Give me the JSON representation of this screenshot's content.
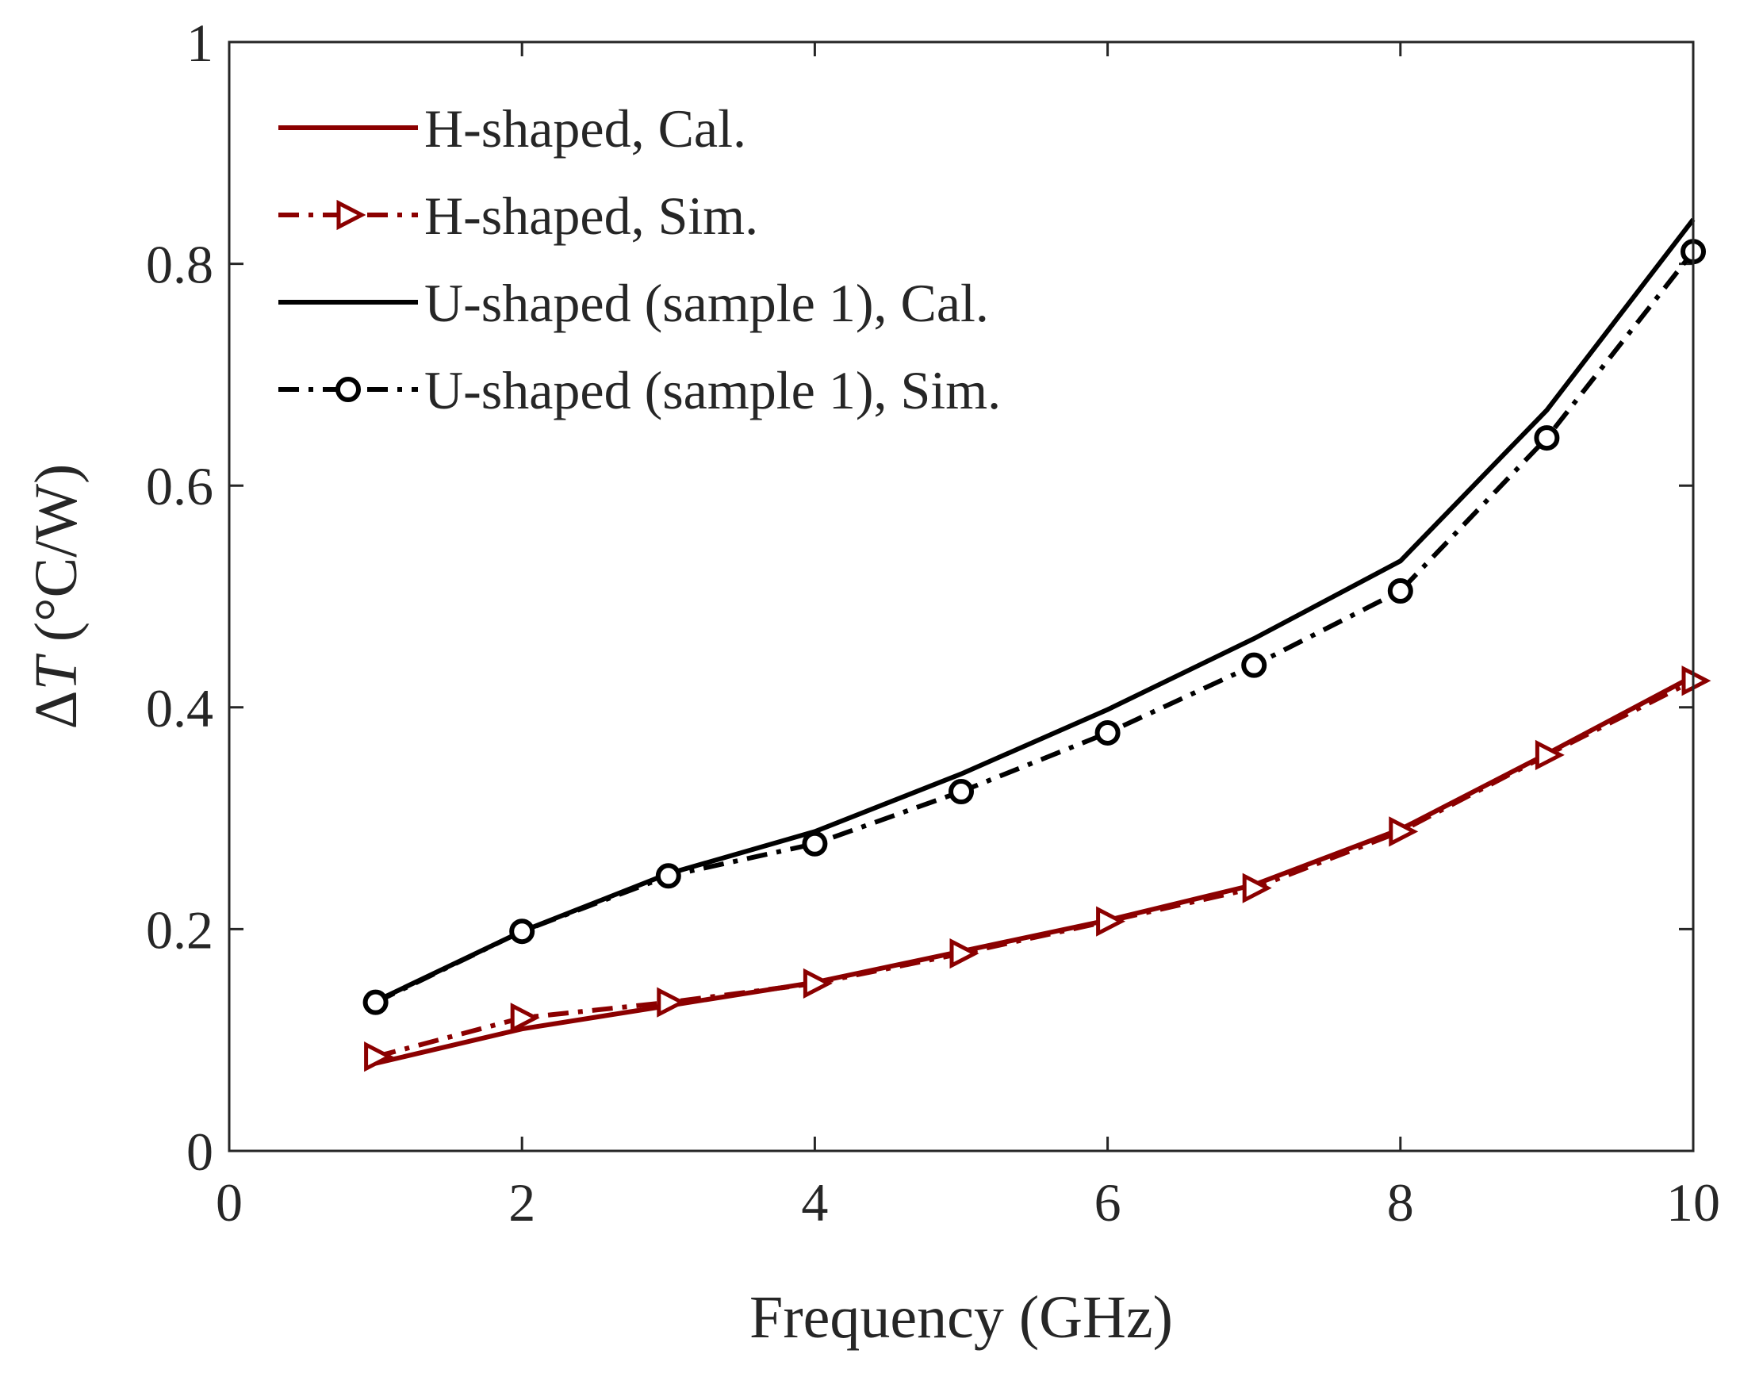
{
  "chart_data": {
    "type": "line",
    "title": "",
    "xlabel": "Frequency (GHz)",
    "ylabel": {
      "delta": "Δ",
      "symbol": "T",
      "unit": " (°C/W)"
    },
    "xlim": [
      0,
      10
    ],
    "ylim": [
      0,
      1
    ],
    "x_ticks": [
      0,
      2,
      4,
      6,
      8,
      10
    ],
    "x_tick_labels": [
      "0",
      "2",
      "4",
      "6",
      "8",
      "10"
    ],
    "y_ticks": [
      0,
      0.2,
      0.4,
      0.6,
      0.8,
      1
    ],
    "y_tick_labels": [
      "0",
      "0.2",
      "0.4",
      "0.6",
      "0.8",
      "1"
    ],
    "grid": false,
    "legend_position": "top-left",
    "x": [
      1,
      2,
      3,
      4,
      5,
      6,
      7,
      8,
      9,
      10
    ],
    "series": [
      {
        "name": "H-shaped, Cal.",
        "color": "#8b0000",
        "line_style": "solid",
        "marker": "none",
        "values": [
          0.079,
          0.11,
          0.131,
          0.152,
          0.18,
          0.208,
          0.24,
          0.29,
          0.358,
          0.428
        ]
      },
      {
        "name": "H-shaped, Sim.",
        "color": "#8b0000",
        "line_style": "dashdot",
        "marker": "triangle-right",
        "values": [
          0.085,
          0.12,
          0.134,
          0.151,
          0.178,
          0.207,
          0.237,
          0.288,
          0.357,
          0.424
        ]
      },
      {
        "name": "U-shaped (sample 1), Cal.",
        "color": "#000000",
        "line_style": "solid",
        "marker": "none",
        "values": [
          0.135,
          0.198,
          0.25,
          0.288,
          0.34,
          0.398,
          0.462,
          0.532,
          0.668,
          0.84
        ]
      },
      {
        "name": "U-shaped (sample 1), Sim.",
        "color": "#000000",
        "line_style": "dashdot",
        "marker": "circle",
        "values": [
          0.134,
          0.198,
          0.248,
          0.277,
          0.324,
          0.377,
          0.438,
          0.505,
          0.643,
          0.811
        ]
      }
    ]
  }
}
